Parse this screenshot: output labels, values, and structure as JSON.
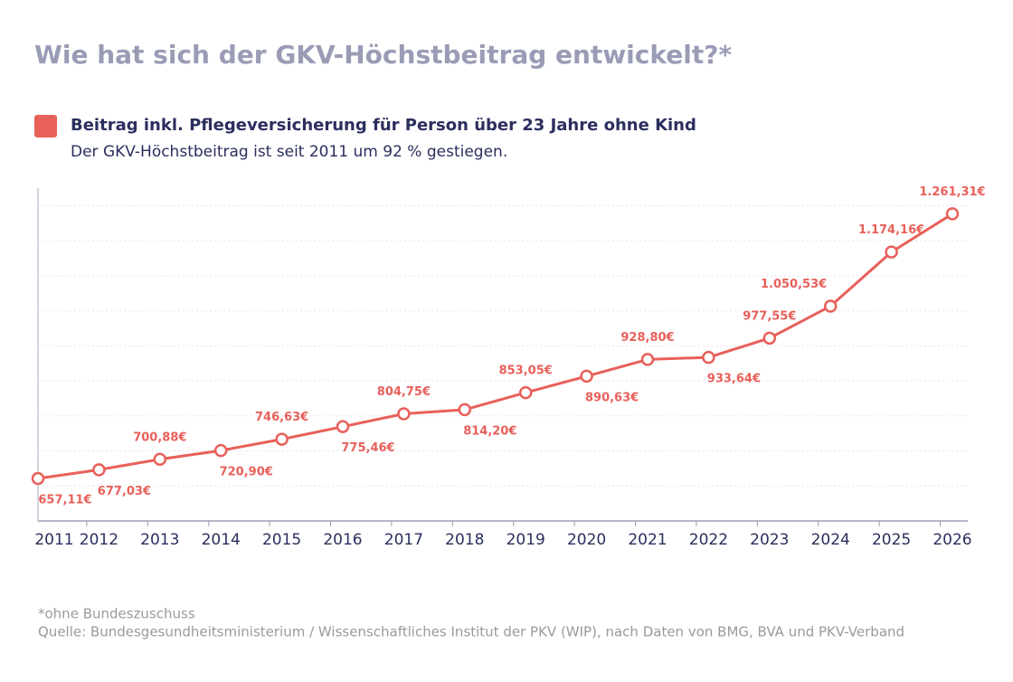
{
  "chart_data": {
    "type": "line",
    "title": "Wie hat sich der GKV-Höchstbeitrag entwickelt?*",
    "subtitle": "Der GKV-Höchstbeitrag ist seit 2011 um 92 % gestiegen.",
    "footnote": "*ohne Bundeszuschuss",
    "source": "Quelle: Bundesgesundheitsministerium / Wissenschaftliches Institut der PKV (WIP), nach Daten von BMG, BVA und PKV-Verband",
    "categories": [
      "2011",
      "2012",
      "2013",
      "2014",
      "2015",
      "2016",
      "2017",
      "2018",
      "2019",
      "2020",
      "2021",
      "2022",
      "2023",
      "2024",
      "2025",
      "2026"
    ],
    "series": [
      {
        "name": "Beitrag inkl. Pflegeversicherung für Person über 23 Jahre ohne Kind",
        "color": "#e8605a",
        "values": [
          657.11,
          677.03,
          700.88,
          720.9,
          746.63,
          775.46,
          804.75,
          814.2,
          853.05,
          890.63,
          928.8,
          933.64,
          977.55,
          1050.53,
          1174.16,
          1261.31
        ],
        "value_labels": [
          "657,11€",
          "677,03€",
          "700,88€",
          "720,90€",
          "746,63€",
          "775,46€",
          "804,75€",
          "814,20€",
          "853,05€",
          "890,63€",
          "928,80€",
          "933,64€",
          "977,55€",
          "1.050,53€",
          "1.174,16€",
          "1.261,31€"
        ]
      }
    ],
    "ylim": [
      560,
      1320
    ],
    "yticks": [
      640,
      720,
      800,
      880,
      960,
      1040,
      1120,
      1200,
      1280
    ],
    "grid": true
  }
}
